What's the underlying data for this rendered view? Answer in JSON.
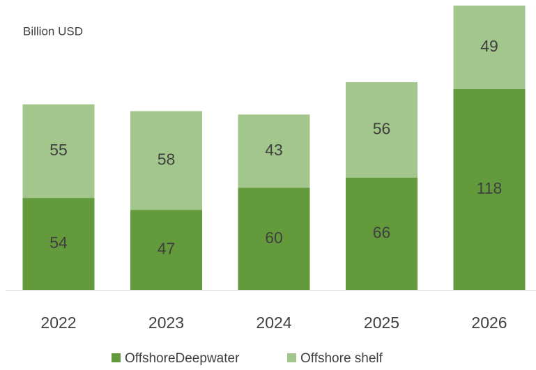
{
  "chart_data": {
    "type": "bar",
    "stacked": true,
    "subtitle": "Billion USD",
    "categories": [
      "2022",
      "2023",
      "2024",
      "2025",
      "2026"
    ],
    "series": [
      {
        "name": "OffshoreDeepwater",
        "color": "#629a3c",
        "values": [
          54,
          47,
          60,
          66,
          118
        ]
      },
      {
        "name": "Offshore shelf",
        "color": "#a3c68c",
        "values": [
          55,
          58,
          43,
          56,
          49
        ]
      }
    ]
  }
}
